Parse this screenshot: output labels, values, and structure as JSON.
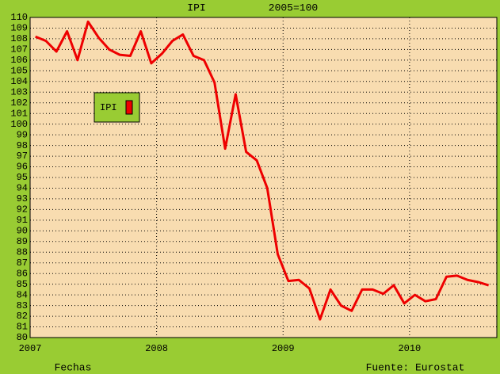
{
  "chart_data": {
    "type": "line",
    "title": "IPI",
    "subtitle": "2005=100",
    "x_label": "Fechas",
    "source": "Fuente: Eurostat",
    "x": [
      2007.042,
      2007.125,
      2007.208,
      2007.292,
      2007.375,
      2007.458,
      2007.542,
      2007.625,
      2007.708,
      2007.792,
      2007.875,
      2007.958,
      2008.042,
      2008.125,
      2008.208,
      2008.292,
      2008.375,
      2008.458,
      2008.542,
      2008.625,
      2008.708,
      2008.792,
      2008.875,
      2008.958,
      2009.042,
      2009.125,
      2009.208,
      2009.292,
      2009.375,
      2009.458,
      2009.542,
      2009.625,
      2009.708,
      2009.792,
      2009.875,
      2009.958,
      2010.042,
      2010.125,
      2010.208,
      2010.292,
      2010.375,
      2010.458,
      2010.542,
      2010.625
    ],
    "series": [
      {
        "name": "IPI",
        "color": "#ee0000",
        "values": [
          108.2,
          107.8,
          106.8,
          108.7,
          106.0,
          109.6,
          108.1,
          107.0,
          106.5,
          106.4,
          108.7,
          105.7,
          106.6,
          107.8,
          108.4,
          106.4,
          106.0,
          103.9,
          97.7,
          102.8,
          97.4,
          96.6,
          94.0,
          87.8,
          85.3,
          85.4,
          84.6,
          81.7,
          84.5,
          83.0,
          82.5,
          84.5,
          84.5,
          84.1,
          84.9,
          83.2,
          84.0,
          83.4,
          83.6,
          85.7,
          85.8,
          85.4,
          85.2,
          84.9
        ]
      }
    ],
    "xlim": [
      2007,
      2010.69
    ],
    "xticks": [
      2007,
      2008,
      2009,
      2010
    ],
    "ylim": [
      80,
      110
    ],
    "yticks": [
      80,
      81,
      82,
      83,
      84,
      85,
      86,
      87,
      88,
      89,
      90,
      91,
      92,
      93,
      94,
      95,
      96,
      97,
      98,
      99,
      100,
      101,
      102,
      103,
      104,
      105,
      106,
      107,
      108,
      109,
      110
    ],
    "grid": true,
    "legend": "upper-left",
    "background": "#f8dcb0"
  }
}
